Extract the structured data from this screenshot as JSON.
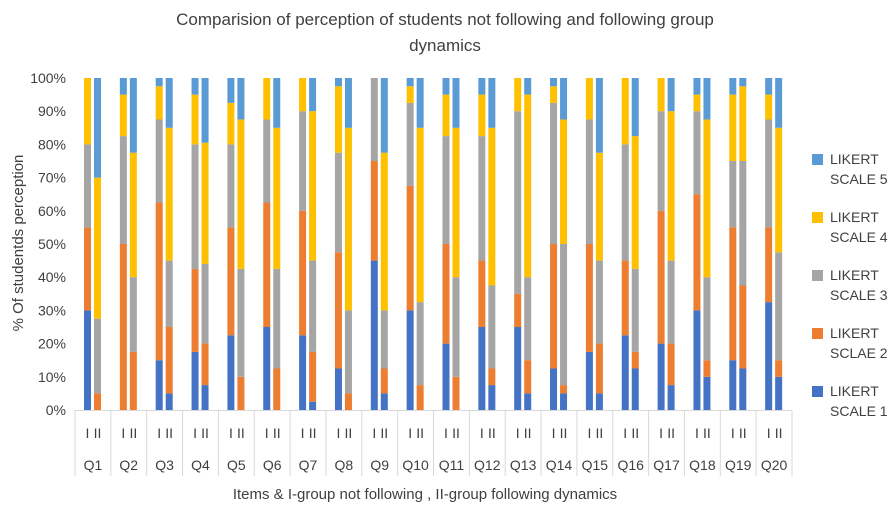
{
  "chart_data": {
    "type": "bar",
    "stacked": true,
    "normalized": true,
    "title": "Comparision of perception of students not following and following group dynamics",
    "title_lines": [
      "Comparision of perception of students not following and following group",
      "dynamics"
    ],
    "xlabel": "Items &   I-group not following , II-group following dynamics",
    "ylabel": "% Of studentds perception",
    "ylim": [
      0,
      100
    ],
    "yticks": [
      "0%",
      "10%",
      "20%",
      "30%",
      "40%",
      "50%",
      "60%",
      "70%",
      "80%",
      "90%",
      "100%"
    ],
    "group_labels": [
      "I",
      "II"
    ],
    "categories": [
      "Q1",
      "Q2",
      "Q3",
      "Q4",
      "Q5",
      "Q6",
      "Q7",
      "Q8",
      "Q9",
      "Q10",
      "Q11",
      "Q12",
      "Q13",
      "Q14",
      "Q15",
      "Q16",
      "Q17",
      "Q18",
      "Q19",
      "Q20"
    ],
    "legend_position": "right",
    "grid": false,
    "series": [
      {
        "name": "LIKERT SCALE 1",
        "legend_lines": [
          "LIKERT",
          "SCALE 1"
        ],
        "color": "#4472C4",
        "group_I": [
          30,
          0,
          15,
          17.5,
          22.5,
          25,
          22.5,
          12.5,
          45,
          30,
          20,
          25,
          25,
          12.5,
          17.5,
          22.5,
          20,
          30,
          15,
          32.5
        ],
        "group_II": [
          0,
          0,
          5,
          7.5,
          0,
          0,
          2.5,
          0,
          5,
          0,
          0,
          7.5,
          5,
          5,
          5,
          12.5,
          7.5,
          10,
          12.5,
          10
        ]
      },
      {
        "name": "LIKERT SCLAE 2",
        "legend_lines": [
          "LIKERT",
          "SCLAE 2"
        ],
        "color": "#ED7D31",
        "group_I": [
          25,
          50,
          47.5,
          25,
          32.5,
          37.5,
          37.5,
          35,
          30,
          37.5,
          30,
          20,
          10,
          37.5,
          32.5,
          22.5,
          40,
          35,
          40,
          22.5
        ],
        "group_II": [
          5,
          17.5,
          20,
          12.5,
          10,
          12.5,
          15,
          5,
          7.5,
          7.5,
          10,
          5,
          10,
          2.5,
          15,
          5,
          12.5,
          5,
          25,
          5
        ]
      },
      {
        "name": "LIKERT SCALE 3",
        "legend_lines": [
          "LIKERT",
          "SCALE 3"
        ],
        "color": "#A5A5A5",
        "group_I": [
          25,
          32.5,
          25,
          37.5,
          25,
          25,
          30,
          30,
          25,
          25,
          32.5,
          37.5,
          55,
          42.5,
          37.5,
          35,
          30,
          25,
          20,
          32.5
        ],
        "group_II": [
          22.5,
          22.5,
          20,
          24,
          32.5,
          30,
          27.5,
          25,
          17.5,
          25,
          30,
          25,
          25,
          42.5,
          25,
          25,
          25,
          25,
          37.5,
          32.5
        ]
      },
      {
        "name": "LIKERT SCALE 4",
        "legend_lines": [
          "LIKERT",
          "SCALE 4"
        ],
        "color": "#FFC000",
        "group_I": [
          20,
          12.5,
          10,
          15,
          12.5,
          12.5,
          10,
          20,
          0,
          5,
          12.5,
          12.5,
          10,
          5,
          12.5,
          20,
          10,
          5,
          20,
          7.5
        ],
        "group_II": [
          42.5,
          37.5,
          40,
          36.5,
          45,
          42.5,
          45,
          55,
          47.5,
          52.5,
          45,
          47.5,
          55,
          37.5,
          32.5,
          40,
          45,
          47.5,
          22.5,
          37.5
        ]
      },
      {
        "name": "LIKERT SCALE 5",
        "legend_lines": [
          "LIKERT",
          "SCALE 5"
        ],
        "color": "#5B9BD5",
        "group_I": [
          0,
          5,
          2.5,
          5,
          7.5,
          0,
          0,
          2.5,
          0,
          2.5,
          5,
          5,
          0,
          2.5,
          0,
          0,
          0,
          5,
          5,
          5
        ],
        "group_II": [
          30,
          22.5,
          15,
          19.5,
          12.5,
          15,
          10,
          15,
          22.5,
          15,
          15,
          15,
          5,
          12.5,
          22.5,
          17.5,
          10,
          12.5,
          2.5,
          15
        ]
      }
    ]
  }
}
